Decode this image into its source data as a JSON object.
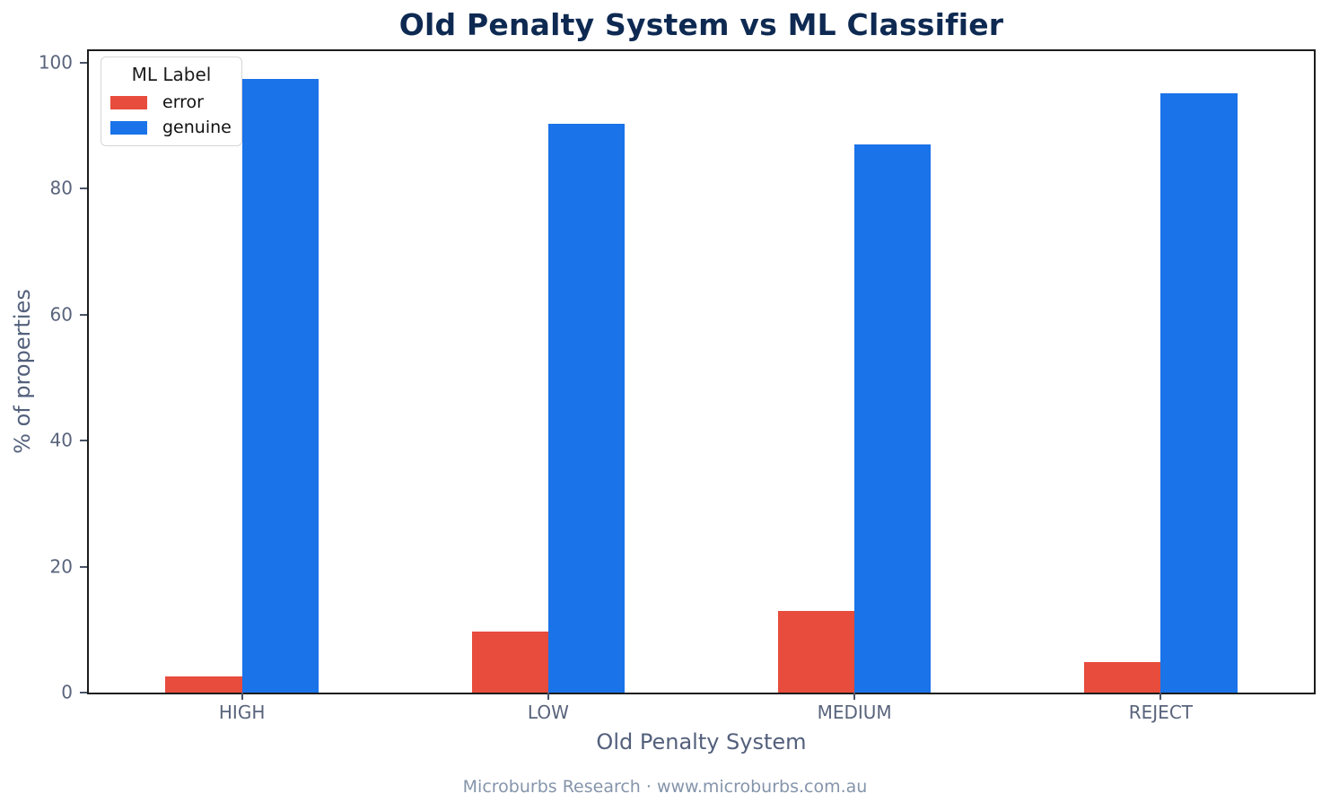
{
  "chart_data": {
    "type": "bar",
    "title": "Old Penalty System vs ML Classifier",
    "xlabel": "Old Penalty System",
    "ylabel": "% of properties",
    "footer": "Microburbs Research · www.microburbs.com.au",
    "categories": [
      "HIGH",
      "LOW",
      "MEDIUM",
      "REJECT"
    ],
    "series": [
      {
        "name": "error",
        "color": "#e74c3c",
        "values": [
          2.5,
          9.7,
          13.0,
          4.8
        ]
      },
      {
        "name": "genuine",
        "color": "#1a73e8",
        "values": [
          97.5,
          90.3,
          87.0,
          95.2
        ]
      }
    ],
    "ylim": [
      0,
      100
    ],
    "yticks": [
      0,
      20,
      40,
      60,
      80,
      100
    ],
    "grid": false,
    "legend": {
      "title": "ML Label",
      "position": "upper left"
    },
    "colors": {
      "title": "#0e2a52",
      "tick_label": "#59647c",
      "axis_label": "#53607c",
      "footer": "#8494aa",
      "frame": "#1c1c1c"
    }
  }
}
